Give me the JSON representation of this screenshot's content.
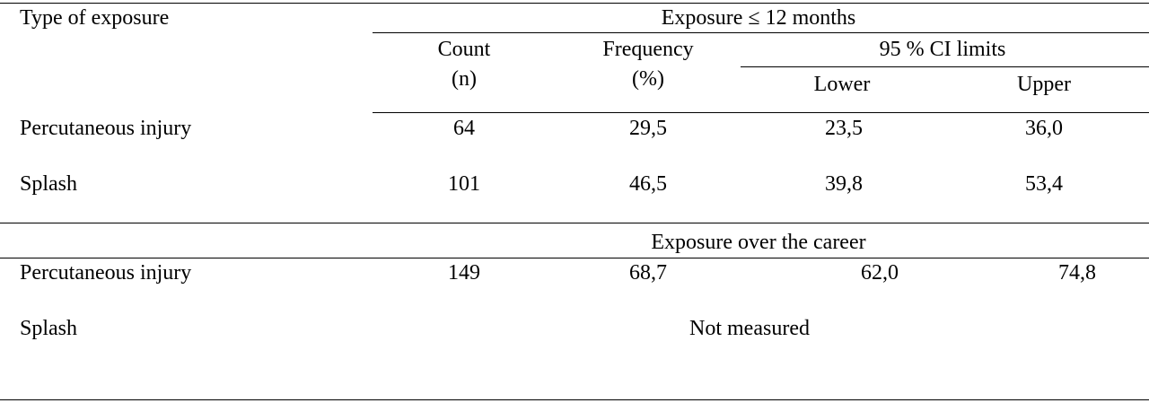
{
  "table": {
    "header": {
      "type_label": "Type of exposure",
      "period_12": "Exposure ≤ 12 months",
      "count": "Count",
      "count_unit": "(n)",
      "frequency": "Frequency",
      "frequency_unit": "(%)",
      "ci": "95 % CI limits",
      "lower": "Lower",
      "upper": "Upper"
    },
    "rows": [
      [
        "Percutaneous injury",
        "64",
        "29,5",
        "23,5",
        "36,0"
      ],
      [
        "Splash",
        "101",
        "46,5",
        "39,8",
        "53,4"
      ]
    ],
    "career_header": "Exposure over the career",
    "career_rows": [
      [
        "Percutaneous injury",
        "149",
        "68,7",
        "62,0",
        "74,8"
      ]
    ],
    "career_splash": {
      "label": "Splash",
      "note": "Not measured"
    }
  }
}
